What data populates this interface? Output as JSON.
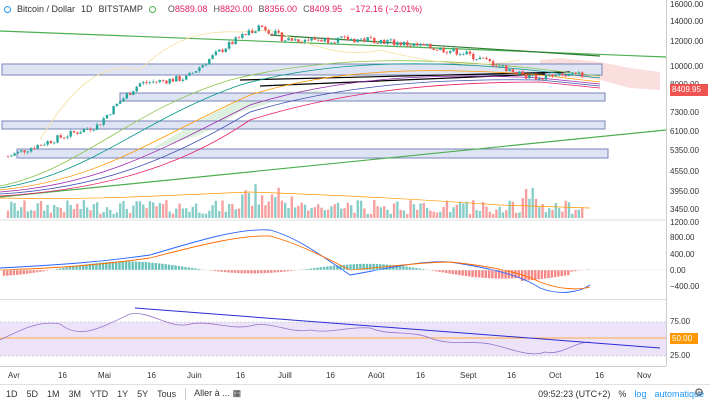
{
  "header": {
    "symbol": "Bitcoin / Dollar",
    "interval": "1D",
    "exchange": "BITSTAMP",
    "ohlc": [
      {
        "key": "O",
        "value": "8589.08"
      },
      {
        "key": "H",
        "value": "8820.00"
      },
      {
        "key": "B",
        "value": "8356.00"
      },
      {
        "key": "C",
        "value": "8409.95"
      }
    ],
    "change": "−172.16 (−2.01%)"
  },
  "price_axis": {
    "ticks": [
      "16000.00",
      "14000.00",
      "12000.00",
      "10000.00",
      "8000.00",
      "7300.00",
      "6100.00",
      "5350.00",
      "4550.00",
      "3950.00",
      "3450.00",
      "1200.00",
      "800.00",
      "400.00",
      "0.00",
      "−400.00"
    ],
    "last_price": "8409.95"
  },
  "rsi_axis": {
    "ticks": [
      "75.00",
      "50.00",
      "25.00"
    ],
    "current": "50.00"
  },
  "time_axis": [
    "Avr",
    "16",
    "Mai",
    "16",
    "Juin",
    "16",
    "Juill",
    "16",
    "Août",
    "16",
    "Sept",
    "16",
    "Oct",
    "16",
    "Nov"
  ],
  "bottom_bar": {
    "timeframes": [
      "1D",
      "5D",
      "1M",
      "3M",
      "YTD",
      "1Y",
      "5Y",
      "Tous"
    ],
    "goto_label": "Aller à ...",
    "clock": "09:52:23 (UTC+2)",
    "percent_label": "%",
    "log_label": "log",
    "auto_label": "automatique"
  },
  "colors": {
    "up": "#26a69a",
    "down": "#ef5350",
    "trend_green": "#4caf50",
    "trend_black": "#000000",
    "rsi_line": "#2b2bd6",
    "rsi_band": "#e9dcf7",
    "box_fill": "#dfe4f5",
    "box_stroke": "#7a86b8"
  },
  "chart_data": {
    "type": "candlestick",
    "title": "Bitcoin / Dollar",
    "interval": "1D",
    "price_approx_path": [
      {
        "month": "Avr",
        "value": 4100
      },
      {
        "month": "Mai",
        "value": 5400
      },
      {
        "month": "mid-Mai",
        "value": 7800
      },
      {
        "month": "Juin",
        "value": 8200
      },
      {
        "month": "late-Juin",
        "value": 13000
      },
      {
        "month": "Juill",
        "value": 11500
      },
      {
        "month": "Août",
        "value": 11500
      },
      {
        "month": "Sept",
        "value": 10300
      },
      {
        "month": "late-Sept",
        "value": 8200
      },
      {
        "month": "Oct",
        "value": 8410
      }
    ],
    "ylim": [
      3000,
      16000
    ],
    "macd_ylim": [
      -600,
      1200
    ],
    "rsi_ylim": [
      15,
      85
    ]
  }
}
